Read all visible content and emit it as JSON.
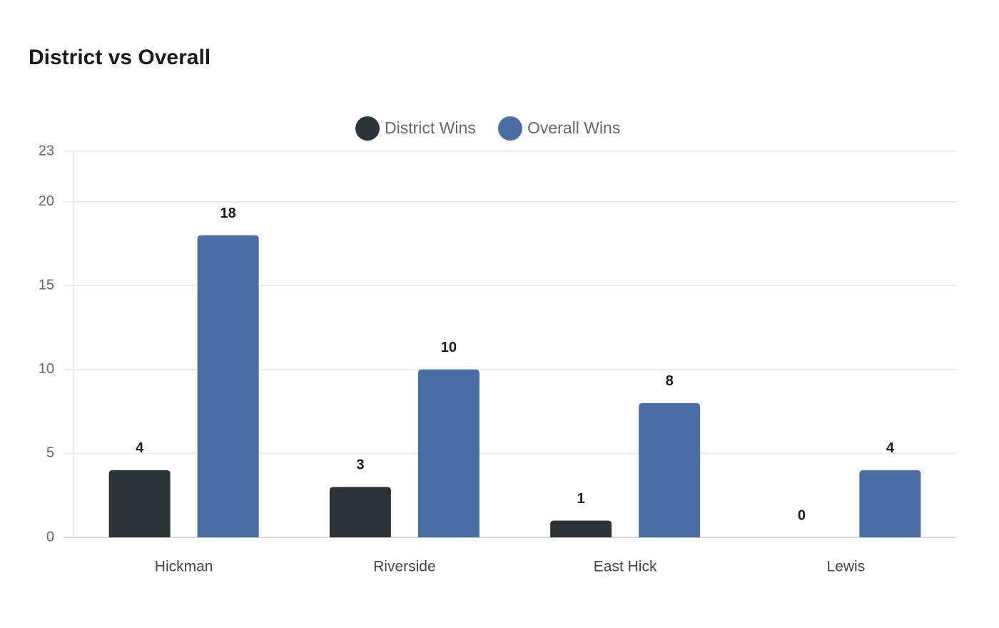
{
  "chart_data": {
    "type": "bar",
    "title": "District vs Overall",
    "categories": [
      "Hickman",
      "Riverside",
      "East Hick",
      "Lewis"
    ],
    "series": [
      {
        "name": "District Wins",
        "color": "#2c3437",
        "values": [
          4,
          3,
          1,
          0
        ]
      },
      {
        "name": "Overall Wins",
        "color": "#4a6ea3",
        "values": [
          18,
          10,
          8,
          4
        ]
      }
    ],
    "ylim": [
      0,
      23
    ],
    "yticks": [
      0,
      5,
      10,
      15,
      20,
      23
    ],
    "grid": true,
    "legend": "top"
  }
}
